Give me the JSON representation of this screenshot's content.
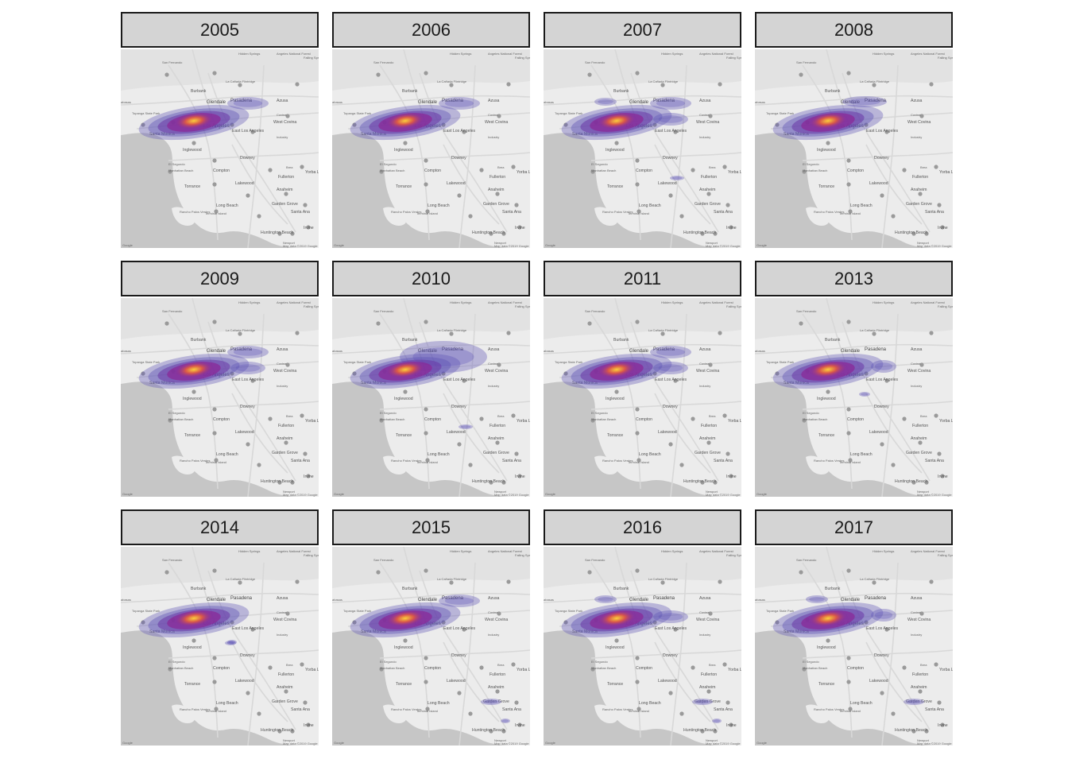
{
  "panels": [
    {
      "year": "2005",
      "extra": [
        "pasadena"
      ]
    },
    {
      "year": "2006",
      "extra": [
        "pasadena"
      ]
    },
    {
      "year": "2007",
      "extra": [
        "pasadena",
        "eastla",
        "burbankw",
        "lakewood"
      ]
    },
    {
      "year": "2008",
      "extra": [
        "glendale"
      ]
    },
    {
      "year": "2009",
      "extra": [
        "pasadena",
        "eastla"
      ]
    },
    {
      "year": "2010",
      "extra": [
        "wide",
        "lakewood"
      ]
    },
    {
      "year": "2011",
      "extra": [
        "pasadena",
        "eastla"
      ]
    },
    {
      "year": "2013",
      "extra": [
        "westcovina",
        "inglewood"
      ]
    },
    {
      "year": "2014",
      "extra": [
        "downtown",
        "inglewood"
      ]
    },
    {
      "year": "2015",
      "extra": [
        "pasadena",
        "santaana",
        "irvine"
      ]
    },
    {
      "year": "2016",
      "extra": [
        "burbankw",
        "eastla",
        "santaana",
        "irvine"
      ]
    },
    {
      "year": "2017",
      "extra": [
        "burbankw",
        "westcovina",
        "santaana"
      ]
    }
  ],
  "map_labels": {
    "san_fernando": "San Fernando",
    "burbank": "Burbank",
    "la_canada": "La Cañada Flintridge",
    "glendale": "Glendale",
    "pasadena": "Pasadena",
    "azusa": "Azusa",
    "topanga": "Topanga State Park",
    "los_angeles": "Los Angeles",
    "east_la": "East Los Angeles",
    "west_covina": "West Covina",
    "covina": "Covina",
    "santa_monica": "Santa Monica",
    "industry": "Industry",
    "inglewood": "Inglewood",
    "downey": "Downey",
    "el_segundo": "El Segundo",
    "manhattan_beach": "Manhattan Beach",
    "compton": "Compton",
    "brea": "Brea",
    "fullerton": "Fullerton",
    "yorba_linda": "Yorba Li",
    "torrance": "Torrance",
    "lakewood": "Lakewood",
    "anaheim": "Anaheim",
    "long_beach": "Long Beach",
    "terminal_island": "Terminal Island",
    "garden_grove": "Garden Grove",
    "santa_ana": "Santa Ana",
    "palos_verdes": "Rancho Palos Verdes",
    "huntington_beach": "Huntington Beach",
    "irvine": "Irvine",
    "newport": "Newport",
    "hidden_springs": "Hidden Springs",
    "angeles_forest": "Angeles National Forest",
    "falling_springs": "Falling Sprin",
    "calabasas": "abasas",
    "google": "Google",
    "attribution": "Map data ©2019 Google"
  },
  "colors": {
    "strip_bg": "#d4d4d4",
    "land": "#ececec",
    "water": "#c6c6c6",
    "density_low": "#5b4fb5",
    "density_mid": "#8a2a98",
    "density_high": "#d8574a",
    "density_peak": "#fbcf3c"
  }
}
